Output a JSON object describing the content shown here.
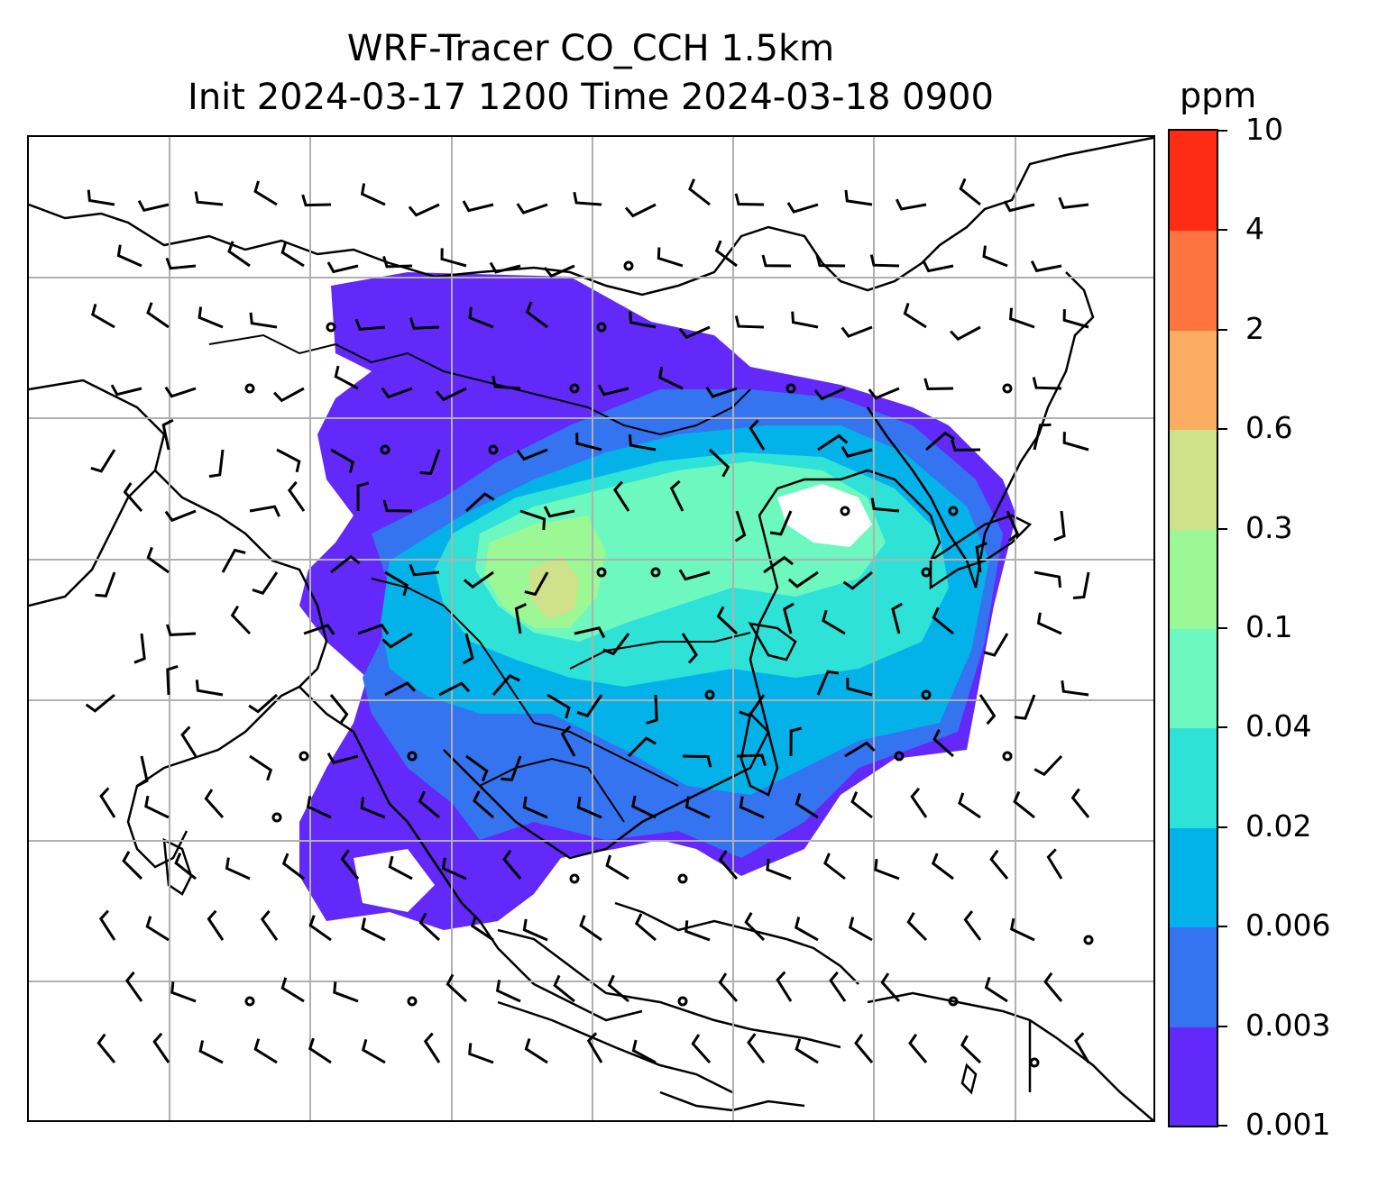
{
  "title": {
    "line1": "WRF-Tracer CO_CCH 1.5km",
    "line2": "Init 2024-03-17 1200 Time 2024-03-18 0900"
  },
  "colorbar": {
    "unit": "ppm",
    "levels": [
      "0.001",
      "0.003",
      "0.006",
      "0.02",
      "0.04",
      "0.1",
      "0.3",
      "0.6",
      "2",
      "4",
      "10"
    ],
    "colors": [
      "#6229fa",
      "#3474f0",
      "#04b2ea",
      "#2fe2d7",
      "#6cf8bf",
      "#9bf895",
      "#cfe18a",
      "#fbae61",
      "#fd7440",
      "#ff2c15"
    ]
  },
  "map": {
    "field": "CO_CCH tracer concentration",
    "wind_display": "wind barbs",
    "gridlines": true,
    "coastline_color": "#000000",
    "grid_color": "#b0b0b0"
  }
}
